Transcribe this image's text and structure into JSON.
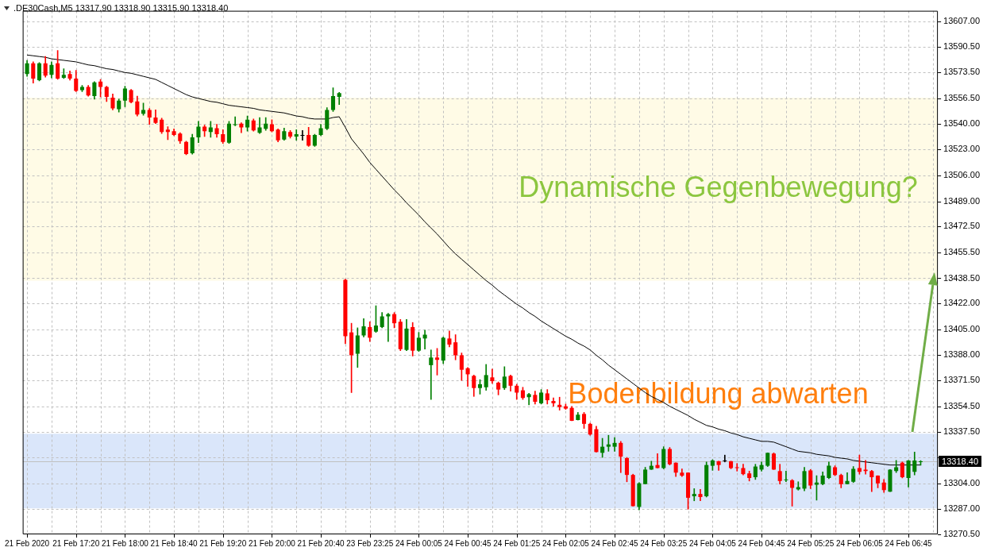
{
  "chart_data": {
    "type": "candlestick",
    "title": ".DE30Cash,M5 13317.90 13318.90 13315.90 13318.40",
    "categories": [
      "21 Feb 2020",
      null,
      null,
      null,
      null,
      null,
      null,
      null,
      "21 Feb 17:20",
      null,
      null,
      null,
      null,
      null,
      null,
      null,
      "21 Feb 18:00",
      null,
      null,
      null,
      null,
      null,
      null,
      null,
      "21 Feb 18:40",
      null,
      null,
      null,
      null,
      null,
      null,
      null,
      "21 Feb 19:20",
      null,
      null,
      null,
      null,
      null,
      null,
      null,
      "21 Feb 20:00",
      null,
      null,
      null,
      null,
      null,
      null,
      null,
      "21 Feb 20:40",
      null,
      null,
      null,
      null,
      null,
      null,
      null,
      "23 Feb 23:25",
      null,
      null,
      null,
      null,
      null,
      null,
      null,
      "24 Feb 00:05",
      null,
      null,
      null,
      null,
      null,
      null,
      null,
      "24 Feb 00:45",
      null,
      null,
      null,
      null,
      null,
      null,
      null,
      "24 Feb 01:25",
      null,
      null,
      null,
      null,
      null,
      null,
      null,
      "24 Feb 02:05",
      null,
      null,
      null,
      null,
      null,
      null,
      null,
      "24 Feb 02:45",
      null,
      null,
      null,
      null,
      null,
      null,
      null,
      "24 Feb 03:25",
      null,
      null,
      null,
      null,
      null,
      null,
      null,
      "24 Feb 04:05",
      null,
      null,
      null,
      null,
      null,
      null,
      null,
      "24 Feb 04:45",
      null,
      null,
      null,
      null,
      null,
      null,
      null,
      "24 Feb 05:25",
      null,
      null,
      null,
      null,
      null,
      null,
      null,
      "24 Feb 06:05",
      null,
      null,
      null,
      null,
      null,
      null,
      null,
      "24 Feb 06:45",
      null,
      null
    ],
    "ohlc": [
      [
        13572.5,
        13581.5,
        13571,
        13579.5
      ],
      [
        13579.5,
        13580.5,
        13566.5,
        13569.5
      ],
      [
        13568.5,
        13580,
        13568,
        13579.5
      ],
      [
        13579.5,
        13584,
        13570.5,
        13571.5
      ],
      [
        13572,
        13580.5,
        13570,
        13578.5
      ],
      [
        13579.5,
        13588,
        13569,
        13569.5
      ],
      [
        13570,
        13576,
        13569.5,
        13572
      ],
      [
        13572.5,
        13574.5,
        13568.5,
        13569.5
      ],
      [
        13569.5,
        13575,
        13561,
        13561.5
      ],
      [
        13562,
        13565,
        13561,
        13564
      ],
      [
        13564,
        13565,
        13558,
        13558.5
      ],
      [
        13558,
        13567.5,
        13556,
        13567
      ],
      [
        13567.5,
        13569,
        13557.5,
        13564
      ],
      [
        13564,
        13564.5,
        13554.5,
        13557.5
      ],
      [
        13557,
        13559.5,
        13549,
        13550
      ],
      [
        13549.5,
        13556,
        13547.5,
        13555
      ],
      [
        13555,
        13564.5,
        13551,
        13563
      ],
      [
        13562,
        13562.5,
        13553.5,
        13554
      ],
      [
        13554.5,
        13558,
        13545,
        13546
      ],
      [
        13546.5,
        13553.5,
        13545.5,
        13549
      ],
      [
        13549,
        13550,
        13539.5,
        13544
      ],
      [
        13544,
        13549,
        13540,
        13540.5
      ],
      [
        13542.5,
        13543.5,
        13533.5,
        13534.5
      ],
      [
        13536,
        13538,
        13529.5,
        13534.5
      ],
      [
        13535,
        13536.5,
        13532,
        13532.5
      ],
      [
        13533.5,
        13534,
        13527,
        13528.5
      ],
      [
        13528,
        13528.5,
        13519.5,
        13520
      ],
      [
        13520.5,
        13533,
        13520,
        13531
      ],
      [
        13531,
        13541.5,
        13527.5,
        13538
      ],
      [
        13538,
        13539,
        13531.5,
        13535
      ],
      [
        13534.5,
        13541.5,
        13531,
        13537.5
      ],
      [
        13537,
        13539.5,
        13531,
        13533
      ],
      [
        13533,
        13536,
        13527,
        13528
      ],
      [
        13527.5,
        13541.5,
        13527,
        13540
      ],
      [
        13539,
        13544.5,
        13538.5,
        13539.5
      ],
      [
        13540,
        13540.5,
        13534,
        13537.5
      ],
      [
        13537.5,
        13545,
        13535,
        13542.5
      ],
      [
        13542,
        13543,
        13535,
        13535.5
      ],
      [
        13534,
        13544,
        13533.5,
        13537.5
      ],
      [
        13536.5,
        13544,
        13535.5,
        13540
      ],
      [
        13539.5,
        13542.5,
        13534.5,
        13535
      ],
      [
        13536,
        13536.5,
        13528,
        13529
      ],
      [
        13529.5,
        13537,
        13529,
        13535
      ],
      [
        13534.5,
        13535.5,
        13530.5,
        13531.5
      ],
      [
        13531.5,
        13536,
        13529,
        13533
      ],
      [
        13532,
        13535.5,
        13529,
        13532
      ],
      [
        13532.5,
        13537.5,
        13525,
        13525.5
      ],
      [
        13525.5,
        13533,
        13525,
        13532.5
      ],
      [
        13532.5,
        13539.5,
        13532,
        13537
      ],
      [
        13536.5,
        13550.5,
        13536,
        13549
      ],
      [
        13549,
        13563.5,
        13548,
        13558
      ],
      [
        13557.5,
        13560.5,
        13552.5,
        13560
      ],
      [
        13437.5,
        13438,
        13395.5,
        13400.5
      ],
      [
        13403,
        13409,
        13363.5,
        13388
      ],
      [
        13389,
        13406,
        13380,
        13401
      ],
      [
        13401,
        13412,
        13400,
        13407
      ],
      [
        13406.5,
        13410,
        13397,
        13399.5
      ],
      [
        13403.5,
        13420.5,
        13403,
        13407.5
      ],
      [
        13406.5,
        13416,
        13406,
        13413.5
      ],
      [
        13413.5,
        13415.5,
        13397,
        13415
      ],
      [
        13415,
        13416,
        13406,
        13409
      ],
      [
        13410,
        13411.5,
        13391,
        13392
      ],
      [
        13391.5,
        13411.5,
        13391,
        13405.5
      ],
      [
        13406.5,
        13409.5,
        13387.5,
        13391
      ],
      [
        13391,
        13403,
        13390.5,
        13399.5
      ],
      [
        13399,
        13404.5,
        13392,
        13401.5
      ],
      [
        13381.5,
        13391.5,
        13359,
        13386.5
      ],
      [
        13386.5,
        13392.5,
        13375,
        13385
      ],
      [
        13384.5,
        13400,
        13382.5,
        13399.5
      ],
      [
        13399,
        13404,
        13393.5,
        13395
      ],
      [
        13396.5,
        13401.5,
        13385,
        13388
      ],
      [
        13388,
        13389.5,
        13371.5,
        13378.5
      ],
      [
        13379.5,
        13380,
        13367.5,
        13375.5
      ],
      [
        13374.5,
        13375,
        13361,
        13366.5
      ],
      [
        13366.5,
        13372,
        13362.5,
        13369
      ],
      [
        13367,
        13382,
        13365,
        13375
      ],
      [
        13373.5,
        13379,
        13369.5,
        13371
      ],
      [
        13370,
        13370.5,
        13362,
        13365.5
      ],
      [
        13366.5,
        13380.5,
        13365.5,
        13374
      ],
      [
        13374.5,
        13375,
        13364.5,
        13368
      ],
      [
        13368,
        13369,
        13359,
        13363.5
      ],
      [
        13365,
        13367,
        13359,
        13360
      ],
      [
        13360.5,
        13363,
        13355.5,
        13362.5
      ],
      [
        13362,
        13364.5,
        13356,
        13357.5
      ],
      [
        13356.5,
        13365.5,
        13356,
        13363.5
      ],
      [
        13363,
        13365.5,
        13356,
        13358.5
      ],
      [
        13358,
        13360,
        13354.5,
        13356.5
      ],
      [
        13355.5,
        13360.5,
        13352,
        13354
      ],
      [
        13354.5,
        13356,
        13352.5,
        13353
      ],
      [
        13353.5,
        13354.5,
        13345,
        13345
      ],
      [
        13345.5,
        13350.5,
        13345.5,
        13349
      ],
      [
        13349.5,
        13350.5,
        13340,
        13343
      ],
      [
        13343,
        13343.5,
        13335.5,
        13336
      ],
      [
        13339.5,
        13341.5,
        13324.5,
        13324.5
      ],
      [
        13324,
        13333.5,
        13321,
        13328
      ],
      [
        13328,
        13335.5,
        13325,
        13329.5
      ],
      [
        13328,
        13334,
        13325,
        13330.5
      ],
      [
        13330.5,
        13331.5,
        13311,
        13321.5
      ],
      [
        13320.5,
        13321,
        13305,
        13309.5
      ],
      [
        13309.5,
        13310,
        13289,
        13289
      ],
      [
        13288.5,
        13304.5,
        13286.5,
        13304
      ],
      [
        13303.5,
        13314.5,
        13303.5,
        13313
      ],
      [
        13313,
        13318.5,
        13313,
        13315.5
      ],
      [
        13316,
        13323.5,
        13314,
        13314
      ],
      [
        13314,
        13328,
        13313.5,
        13326.5
      ],
      [
        13326.5,
        13327.5,
        13316,
        13316.5
      ],
      [
        13317.5,
        13317.5,
        13308.5,
        13311
      ],
      [
        13311,
        13313.5,
        13308.5,
        13309
      ],
      [
        13311,
        13311,
        13287,
        13294.5
      ],
      [
        13295.5,
        13300.5,
        13292.5,
        13297
      ],
      [
        13297,
        13300,
        13292.5,
        13295
      ],
      [
        13295.5,
        13318,
        13295,
        13316
      ],
      [
        13315.5,
        13319.5,
        13312.5,
        13319
      ],
      [
        13318.5,
        13318.5,
        13312.5,
        13316
      ],
      [
        13318.5,
        13322.5,
        13318,
        13318.5
      ],
      [
        13318.5,
        13318.5,
        13313.5,
        13314
      ],
      [
        13314.5,
        13317,
        13312,
        13314
      ],
      [
        13314,
        13316.5,
        13309.5,
        13310
      ],
      [
        13310.5,
        13312,
        13305.5,
        13307.5
      ],
      [
        13308,
        13316.5,
        13306.5,
        13315
      ],
      [
        13313,
        13318,
        13312,
        13316
      ],
      [
        13315.5,
        13324,
        13315,
        13324
      ],
      [
        13323.5,
        13324,
        13313,
        13313
      ],
      [
        13312,
        13316.5,
        13303.5,
        13305.5
      ],
      [
        13306,
        13312,
        13305,
        13306.5
      ],
      [
        13306,
        13306.5,
        13289,
        13301
      ],
      [
        13300,
        13305,
        13299.5,
        13301.5
      ],
      [
        13300.5,
        13314.5,
        13299,
        13312
      ],
      [
        13312.5,
        13313,
        13300.5,
        13302.5
      ],
      [
        13303,
        13309,
        13293,
        13304.5
      ],
      [
        13303.5,
        13311.5,
        13303,
        13309
      ],
      [
        13307.5,
        13318,
        13307,
        13315.5
      ],
      [
        13314.5,
        13315.5,
        13309,
        13309.5
      ],
      [
        13309.5,
        13310,
        13301,
        13303.5
      ],
      [
        13303.5,
        13311,
        13303.5,
        13305.5
      ],
      [
        13305,
        13315,
        13304.5,
        13313.5
      ],
      [
        13314,
        13322.5,
        13310,
        13311.5
      ],
      [
        13313,
        13319,
        13310,
        13312
      ],
      [
        13312,
        13312.5,
        13298.5,
        13308
      ],
      [
        13309,
        13309,
        13301,
        13304
      ],
      [
        13304.5,
        13306.5,
        13298,
        13299.5
      ],
      [
        13298.5,
        13313,
        13298.5,
        13313
      ],
      [
        13312,
        13319,
        13311,
        13314.5
      ],
      [
        13317.5,
        13318,
        13307.5,
        13308
      ],
      [
        13307.5,
        13319,
        13301.5,
        13319
      ],
      [
        13311.5,
        13324.5,
        13309.5,
        13319
      ],
      [
        13317.9,
        13318.9,
        13315.9,
        13318.4
      ]
    ],
    "colors": [
      "#008000",
      "#ff0000",
      "#008000",
      "#ff0000",
      "#008000",
      "#ff0000",
      "#008000",
      "#ff0000",
      "#ff0000",
      "#008000",
      "#ff0000",
      "#008000",
      "#ff0000",
      "#ff0000",
      "#ff0000",
      "#008000",
      "#008000",
      "#ff0000",
      "#ff0000",
      "#008000",
      "#ff0000",
      "#ff0000",
      "#ff0000",
      "#ff0000",
      "#ff0000",
      "#ff0000",
      "#ff0000",
      "#008000",
      "#008000",
      "#ff0000",
      "#008000",
      "#ff0000",
      "#ff0000",
      "#008000",
      "#008000",
      "#ff0000",
      "#008000",
      "#ff0000",
      "#008000",
      "#008000",
      "#ff0000",
      "#ff0000",
      "#008000",
      "#ff0000",
      "#008000",
      "#000000",
      "#ff0000",
      "#008000",
      "#008000",
      "#008000",
      "#008000",
      "#008000",
      "#ff0000",
      "#ff0000",
      "#008000",
      "#008000",
      "#ff0000",
      "#008000",
      "#008000",
      "#008000",
      "#ff0000",
      "#ff0000",
      "#008000",
      "#ff0000",
      "#008000",
      "#008000",
      "#008000",
      "#ff0000",
      "#008000",
      "#ff0000",
      "#ff0000",
      "#ff0000",
      "#ff0000",
      "#ff0000",
      "#008000",
      "#008000",
      "#ff0000",
      "#ff0000",
      "#008000",
      "#ff0000",
      "#ff0000",
      "#ff0000",
      "#008000",
      "#ff0000",
      "#008000",
      "#ff0000",
      "#ff0000",
      "#ff0000",
      "#ff0000",
      "#ff0000",
      "#008000",
      "#ff0000",
      "#ff0000",
      "#ff0000",
      "#008000",
      "#008000",
      "#008000",
      "#ff0000",
      "#ff0000",
      "#ff0000",
      "#008000",
      "#008000",
      "#008000",
      "#ff0000",
      "#008000",
      "#ff0000",
      "#ff0000",
      "#ff0000",
      "#ff0000",
      "#008000",
      "#ff0000",
      "#008000",
      "#008000",
      "#ff0000",
      "#000000",
      "#ff0000",
      "#ff0000",
      "#ff0000",
      "#ff0000",
      "#008000",
      "#008000",
      "#008000",
      "#ff0000",
      "#ff0000",
      "#008000",
      "#ff0000",
      "#008000",
      "#008000",
      "#ff0000",
      "#008000",
      "#008000",
      "#008000",
      "#ff0000",
      "#ff0000",
      "#008000",
      "#008000",
      "#ff0000",
      "#ff0000",
      "#ff0000",
      "#ff0000",
      "#ff0000",
      "#008000",
      "#008000",
      "#ff0000",
      "#008000",
      "#008000",
      "#008000"
    ],
    "series": [
      {
        "type": "line",
        "color": "#000000",
        "marker": "none",
        "values": [
          13585,
          13584.5,
          13584,
          13583.5,
          13582.5,
          13582,
          13581.5,
          13581,
          13580.5,
          13579.5,
          13578.5,
          13578,
          13577,
          13576,
          13575.5,
          13574.5,
          13573.5,
          13573,
          13572,
          13571,
          13570,
          13569,
          13567,
          13565,
          13563,
          13561,
          13559,
          13557.5,
          13556.5,
          13555.5,
          13554.5,
          13554,
          13553,
          13552,
          13551.5,
          13551,
          13550.5,
          13550,
          13549,
          13548.5,
          13548,
          13547.5,
          13547,
          13546,
          13545,
          13544.5,
          13543.5,
          13543,
          13543,
          13543,
          13544,
          13544.5,
          13537.5,
          13530,
          13525,
          13520,
          13514.5,
          13510,
          13505.5,
          13501,
          13496.5,
          13492.5,
          13488,
          13484,
          13480,
          13475.5,
          13471.5,
          13467.5,
          13463,
          13458.5,
          13454.5,
          13451,
          13447.5,
          13444,
          13440.5,
          13437,
          13434,
          13430.5,
          13427.5,
          13424.5,
          13421.5,
          13419,
          13416,
          13413.5,
          13410.5,
          13408,
          13405.5,
          13403,
          13400.5,
          13398.5,
          13396,
          13394,
          13391.5,
          13388,
          13385,
          13381.5,
          13378.5,
          13375.5,
          13372.5,
          13369.5,
          13366.5,
          13363.5,
          13361,
          13359,
          13357,
          13354.5,
          13352.5,
          13350.5,
          13348.5,
          13346,
          13344,
          13342,
          13341,
          13339.5,
          13338.5,
          13337,
          13336,
          13334.5,
          13333.5,
          13332.5,
          13331.5,
          13331.5,
          13331,
          13329.5,
          13328,
          13326.5,
          13325,
          13324.5,
          13324,
          13323,
          13322.5,
          13322,
          13321,
          13320.5,
          13320,
          13319,
          13318.5,
          13318,
          13317.5,
          13317,
          13316.5,
          13316,
          13316,
          13316,
          13316,
          13316,
          13316
        ]
      }
    ],
    "ylim": [
      13270.5,
      13614
    ],
    "yticks": [
      {
        "value": 13270.5,
        "label": "13270.50"
      },
      {
        "value": 13287,
        "label": "13287.00"
      },
      {
        "value": 13304,
        "label": "13304.00"
      },
      {
        "value": 13321,
        "label": null
      },
      {
        "value": 13337.5,
        "label": "13337.50"
      },
      {
        "value": 13354.5,
        "label": "13354.50"
      },
      {
        "value": 13371.5,
        "label": "13371.50"
      },
      {
        "value": 13388,
        "label": "13388.00"
      },
      {
        "value": 13405,
        "label": "13405.00"
      },
      {
        "value": 13422,
        "label": "13422.00"
      },
      {
        "value": 13438.5,
        "label": "13438.50"
      },
      {
        "value": 13455.5,
        "label": "13455.50"
      },
      {
        "value": 13472.5,
        "label": "13472.50"
      },
      {
        "value": 13489,
        "label": "13489.00"
      },
      {
        "value": 13506,
        "label": "13506.00"
      },
      {
        "value": 13523,
        "label": "13523.00"
      },
      {
        "value": 13540,
        "label": "13540.00"
      },
      {
        "value": 13556.5,
        "label": "13556.50"
      },
      {
        "value": 13573.5,
        "label": "13573.50"
      },
      {
        "value": 13590.5,
        "label": "13590.50"
      },
      {
        "value": 13607,
        "label": "13607.00"
      }
    ],
    "grid": true,
    "bands": [
      {
        "axis": "y",
        "from": 13437,
        "to": 13557,
        "label": "Dynamische Gegenbewegung?",
        "color": "#fffbe6"
      },
      {
        "axis": "y",
        "from": 13287.5,
        "to": 13336.5,
        "label": "Bodenbildung abwarten",
        "color": "#dae6fa"
      }
    ],
    "ref_lines": [
      {
        "axis": "y",
        "value": 13318.4,
        "label": "13318.40",
        "color": "#c0c0c0"
      }
    ]
  }
}
